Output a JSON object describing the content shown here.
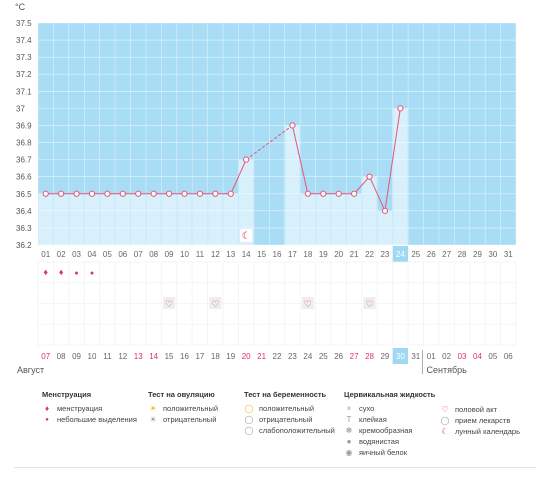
{
  "chart_data": {
    "type": "line",
    "ylabel": "°C",
    "ylim": [
      36.2,
      37.5
    ],
    "yticks": [
      "36.2",
      "36.3",
      "36.4",
      "36.5",
      "36.6",
      "36.7",
      "36.8",
      "36.9",
      "37",
      "37.1",
      "37.2",
      "37.3",
      "37.4",
      "37.5"
    ],
    "grid": true,
    "cycle_days": [
      "01",
      "02",
      "03",
      "04",
      "05",
      "06",
      "07",
      "08",
      "09",
      "10",
      "11",
      "12",
      "13",
      "14",
      "15",
      "16",
      "17",
      "18",
      "19",
      "20",
      "21",
      "22",
      "23",
      "24",
      "25",
      "26",
      "27",
      "28",
      "29",
      "30",
      "31"
    ],
    "temperature": [
      36.5,
      36.5,
      36.5,
      36.5,
      36.5,
      36.5,
      36.5,
      36.5,
      36.5,
      36.5,
      36.5,
      36.5,
      36.5,
      36.7,
      null,
      null,
      36.9,
      36.5,
      36.5,
      36.5,
      36.5,
      36.6,
      36.4,
      37.0,
      null,
      null,
      null,
      null,
      null,
      null,
      null
    ],
    "highlighted_day": 24,
    "menstruation": {
      "heavy": [
        1,
        2
      ],
      "light": [
        3,
        4
      ]
    },
    "intercourse_days": [
      9,
      12,
      18,
      22
    ],
    "lunar_day": 14,
    "calendar_dates": [
      "07",
      "08",
      "09",
      "10",
      "11",
      "12",
      "13",
      "14",
      "15",
      "16",
      "17",
      "18",
      "19",
      "20",
      "21",
      "22",
      "23",
      "24",
      "25",
      "26",
      "27",
      "28",
      "29",
      "30",
      "31",
      "01",
      "02",
      "03",
      "04",
      "05",
      "06"
    ],
    "weekend_dates": [
      0,
      6,
      7,
      13,
      14,
      20,
      21,
      27,
      28
    ],
    "highlighted_date_index": 23,
    "month_left": "Август",
    "month_right": "Сентябрь",
    "colors": {
      "chart_bg": "#a9dcf5",
      "bar_fill": "#d7f0fc",
      "line": "#e8537a",
      "highlight": "#9fd8f3",
      "weekend_text": "#e0335a"
    }
  },
  "legend": {
    "menstruation": {
      "title": "Менструация",
      "items": [
        "менструация",
        "небольшие выделения"
      ]
    },
    "ovulation": {
      "title": "Тест на овуляцию",
      "items": [
        "положительный",
        "отрицательный"
      ]
    },
    "pregnancy": {
      "title": "Тест на беременность",
      "items": [
        "положительный",
        "отрицательный",
        "слабоположительный"
      ]
    },
    "cervical": {
      "title": "Цервикальная жидкость",
      "items": [
        "сухо",
        "клейкая",
        "кремообразная",
        "водянистая",
        "яичный белок"
      ]
    },
    "other": {
      "items": [
        "половой акт",
        "прием лекарств",
        "лунный календарь"
      ]
    }
  }
}
